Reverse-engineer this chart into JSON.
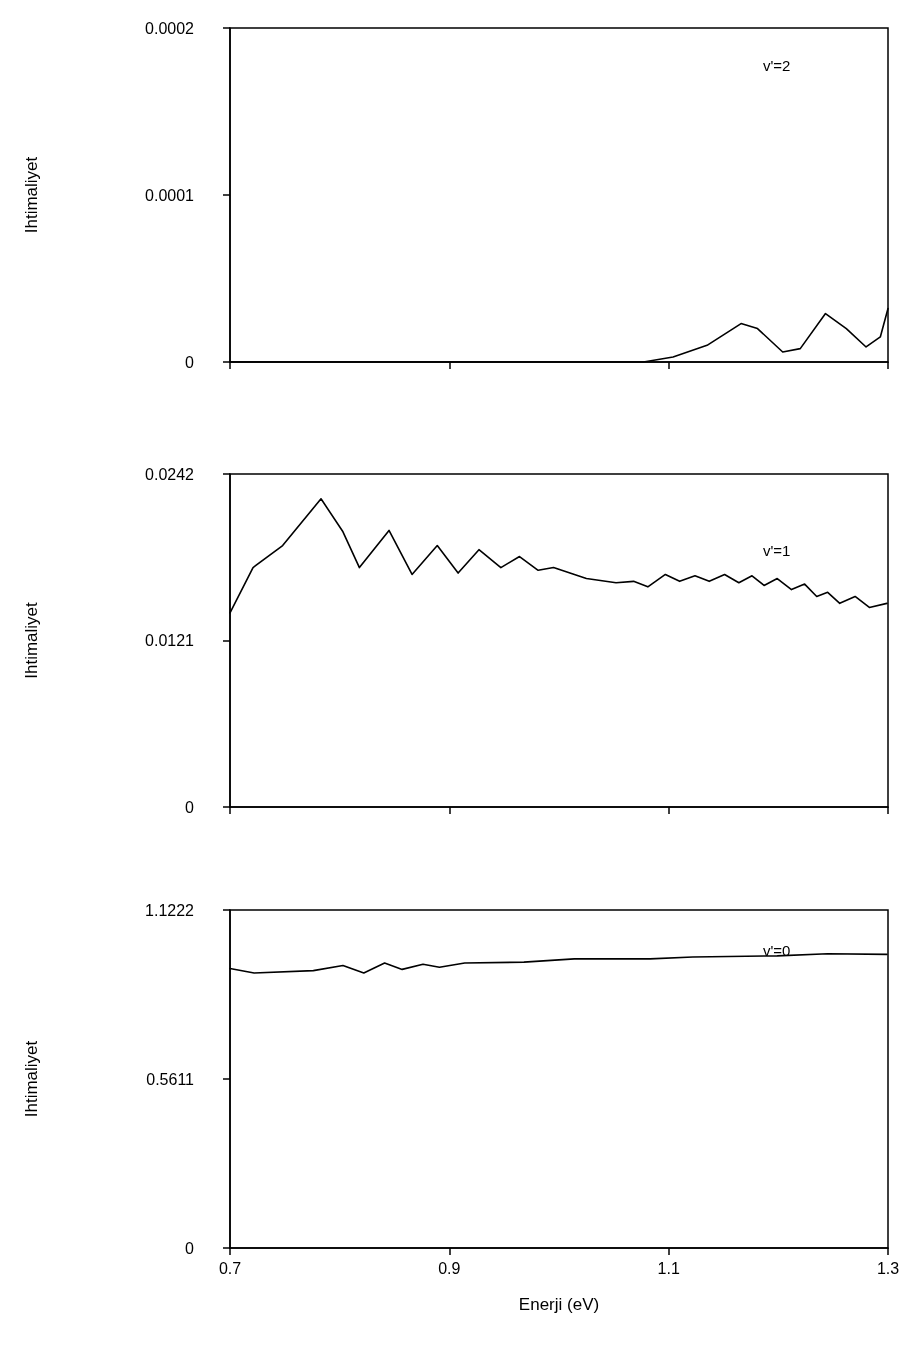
{
  "chart_data": [
    {
      "type": "line",
      "ylabel": "Ihtimaliyet",
      "annotations": [
        "v'=2"
      ],
      "x": [
        0.7,
        0.9,
        1.0,
        1.05,
        1.077,
        1.104,
        1.135,
        1.166,
        1.181,
        1.204,
        1.22,
        1.243,
        1.262,
        1.28,
        1.293,
        1.3
      ],
      "series": [
        {
          "color": "#000000",
          "values": [
            0,
            0,
            0,
            0,
            0,
            3e-06,
            1e-05,
            2.3e-05,
            2e-05,
            6e-06,
            8e-06,
            2.9e-05,
            2e-05,
            9e-06,
            1.5e-05,
            3.2e-05
          ]
        }
      ],
      "xlim": [
        0.7,
        1.3
      ],
      "xticks": [
        {
          "value": 0.7,
          "label": null
        },
        {
          "value": 0.9,
          "label": null
        },
        {
          "value": 1.1,
          "label": null
        },
        {
          "value": 1.3,
          "label": null
        }
      ],
      "ylim": [
        0,
        0.0002
      ],
      "yticks": [
        0,
        0.0001,
        0.0002
      ],
      "tick_labels": "y",
      "grid": false,
      "marker": "none",
      "line_style": "solid"
    },
    {
      "type": "line",
      "ylabel": "Ihtimaliyet",
      "annotations": [
        "v'=1"
      ],
      "x": [
        0.7,
        0.721,
        0.748,
        0.783,
        0.803,
        0.818,
        0.845,
        0.866,
        0.889,
        0.908,
        0.927,
        0.947,
        0.964,
        0.981,
        0.995,
        1.025,
        1.052,
        1.068,
        1.081,
        1.097,
        1.11,
        1.124,
        1.137,
        1.151,
        1.164,
        1.176,
        1.187,
        1.199,
        1.212,
        1.224,
        1.235,
        1.245,
        1.256,
        1.27,
        1.283,
        1.299
      ],
      "series": [
        {
          "color": "#000000",
          "values": [
            0.0141,
            0.0174,
            0.019,
            0.0224,
            0.02,
            0.0174,
            0.0201,
            0.0169,
            0.019,
            0.017,
            0.0187,
            0.0174,
            0.0182,
            0.0172,
            0.0174,
            0.0166,
            0.0163,
            0.0164,
            0.016,
            0.0169,
            0.0164,
            0.0168,
            0.0164,
            0.0169,
            0.0163,
            0.0168,
            0.0161,
            0.0166,
            0.0158,
            0.0162,
            0.0153,
            0.0156,
            0.0148,
            0.0153,
            0.0145,
            0.0148
          ]
        }
      ],
      "xlim": [
        0.7,
        1.3
      ],
      "xticks": [
        {
          "value": 0.7,
          "label": null
        },
        {
          "value": 0.9,
          "label": null
        },
        {
          "value": 1.1,
          "label": null
        },
        {
          "value": 1.3,
          "label": null
        }
      ],
      "ylim": [
        0,
        0.0242
      ],
      "yticks": [
        0,
        0.0121,
        0.0242
      ],
      "tick_labels": "y",
      "grid": false,
      "marker": "none",
      "line_style": "solid"
    },
    {
      "type": "line",
      "xlabel": "Enerji (eV)",
      "ylabel": "Ihtimaliyet",
      "annotations": [
        "v'=0"
      ],
      "x": [
        0.7,
        0.722,
        0.776,
        0.803,
        0.822,
        0.841,
        0.857,
        0.876,
        0.891,
        0.914,
        0.968,
        1.014,
        1.083,
        1.122,
        1.199,
        1.245,
        1.299
      ],
      "series": [
        {
          "color": "#000000",
          "values": [
            0.928,
            0.913,
            0.921,
            0.938,
            0.913,
            0.946,
            0.925,
            0.942,
            0.932,
            0.946,
            0.949,
            0.96,
            0.96,
            0.966,
            0.97,
            0.977,
            0.975
          ]
        }
      ],
      "xlim": [
        0.7,
        1.3
      ],
      "xticks": [
        0.7,
        0.9,
        1.1,
        1.3
      ],
      "ylim": [
        0,
        1.1222
      ],
      "yticks": [
        0,
        0.5611,
        1.1222
      ],
      "grid": false,
      "marker": "none",
      "line_style": "solid"
    }
  ]
}
